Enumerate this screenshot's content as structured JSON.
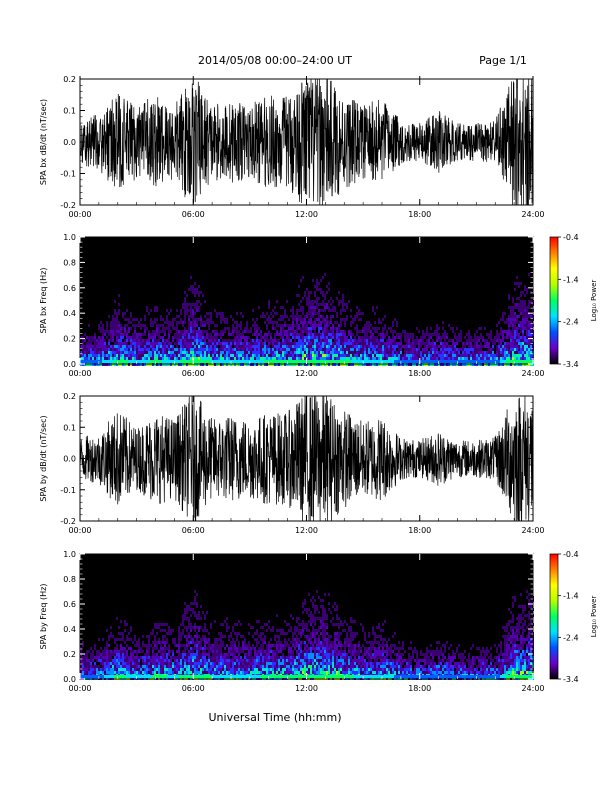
{
  "header": {
    "title": "2014/05/08  00:00–24:00 UT",
    "page": "Page 1/1"
  },
  "xlabel": "Universal Time (hh:mm)",
  "colorbar": {
    "label": "Log₁₀ Power",
    "ticks": [
      "-0.4",
      "-1.4",
      "-2.4",
      "-3.4"
    ],
    "range": [
      -3.4,
      -0.4
    ],
    "colors": [
      "#000000",
      "#6a00c8",
      "#0050ff",
      "#00e0ff",
      "#00ff60",
      "#b4ff00",
      "#ffff00",
      "#ff8000",
      "#ff0000"
    ]
  },
  "chart_data": [
    {
      "type": "line",
      "name": "waveform-bx",
      "ylabel": "SPA bx dB/dt (nT/sec)",
      "ylim": [
        -0.2,
        0.2
      ],
      "yticks": [
        "0.2",
        "0.1",
        "0.0",
        "-0.1",
        "-0.2"
      ],
      "xlim": [
        "00:00",
        "24:00"
      ],
      "xticks": [
        "00:00",
        "06:00",
        "12:00",
        "18:00",
        "24:00"
      ],
      "envelope_hours": [
        0,
        1,
        2,
        3,
        4,
        5,
        6,
        7,
        8,
        9,
        10,
        11,
        12,
        13,
        14,
        15,
        16,
        17,
        18,
        19,
        20,
        21,
        22,
        23,
        24
      ],
      "envelope_amplitude": [
        0.07,
        0.09,
        0.16,
        0.12,
        0.15,
        0.12,
        0.22,
        0.12,
        0.13,
        0.12,
        0.15,
        0.15,
        0.22,
        0.22,
        0.15,
        0.12,
        0.14,
        0.07,
        0.06,
        0.1,
        0.06,
        0.06,
        0.07,
        0.22,
        0.22
      ]
    },
    {
      "type": "heatmap",
      "name": "spectrogram-bx",
      "ylabel": "SPA bx Freq (Hz)",
      "ylim": [
        0.0,
        1.0
      ],
      "yticks": [
        "1.0",
        "0.8",
        "0.6",
        "0.4",
        "0.2",
        "0.0"
      ],
      "xlim": [
        "00:00",
        "24:00"
      ],
      "xticks": [
        "00:00",
        "06:00",
        "12:00",
        "18:00",
        "24:00"
      ],
      "zlabel": "Log₁₀ Power",
      "zlim": [
        -3.4,
        -0.4
      ]
    },
    {
      "type": "line",
      "name": "waveform-by",
      "ylabel": "SPA by dB/dt (nT/sec)",
      "ylim": [
        -0.2,
        0.2
      ],
      "yticks": [
        "0.2",
        "0.1",
        "0.0",
        "-0.1",
        "-0.2"
      ],
      "xlim": [
        "00:00",
        "24:00"
      ],
      "xticks": [
        "00:00",
        "06:00",
        "12:00",
        "18:00",
        "24:00"
      ],
      "envelope_hours": [
        0,
        1,
        2,
        3,
        4,
        5,
        6,
        7,
        8,
        9,
        10,
        11,
        12,
        13,
        14,
        15,
        16,
        17,
        18,
        19,
        20,
        21,
        22,
        23,
        24
      ],
      "envelope_amplitude": [
        0.07,
        0.08,
        0.16,
        0.1,
        0.15,
        0.13,
        0.22,
        0.13,
        0.14,
        0.13,
        0.15,
        0.15,
        0.22,
        0.22,
        0.16,
        0.12,
        0.14,
        0.07,
        0.06,
        0.09,
        0.06,
        0.06,
        0.07,
        0.22,
        0.22
      ]
    },
    {
      "type": "heatmap",
      "name": "spectrogram-by",
      "ylabel": "SPA by Freq (Hz)",
      "ylim": [
        0.0,
        1.0
      ],
      "yticks": [
        "1.0",
        "0.8",
        "0.6",
        "0.4",
        "0.2",
        "0.0"
      ],
      "xlim": [
        "00:00",
        "24:00"
      ],
      "xticks": [
        "00:00",
        "06:00",
        "12:00",
        "18:00",
        "24:00"
      ],
      "zlabel": "Log₁₀ Power",
      "zlim": [
        -3.4,
        -0.4
      ]
    }
  ]
}
